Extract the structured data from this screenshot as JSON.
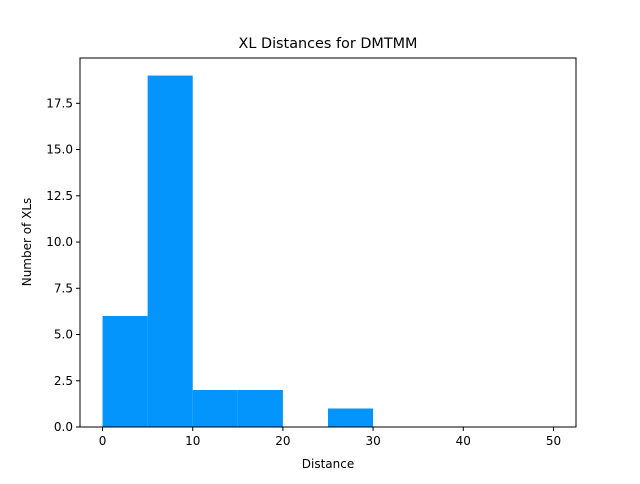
{
  "chart_data": {
    "type": "bar",
    "subtype": "histogram",
    "title": "XL Distances for DMTMM",
    "xlabel": "Distance",
    "ylabel": "Number of XLs",
    "bins": [
      {
        "start": 0,
        "end": 5,
        "count": 6
      },
      {
        "start": 5,
        "end": 10,
        "count": 19
      },
      {
        "start": 10,
        "end": 15,
        "count": 2
      },
      {
        "start": 15,
        "end": 20,
        "count": 2
      },
      {
        "start": 20,
        "end": 25,
        "count": 0
      },
      {
        "start": 25,
        "end": 30,
        "count": 1
      },
      {
        "start": 30,
        "end": 35,
        "count": 0
      },
      {
        "start": 35,
        "end": 40,
        "count": 0
      },
      {
        "start": 40,
        "end": 45,
        "count": 0
      },
      {
        "start": 45,
        "end": 50,
        "count": 0
      }
    ],
    "xlim": [
      -2.5,
      52.5
    ],
    "ylim": [
      0,
      19.95
    ],
    "xticks": [
      0,
      10,
      20,
      30,
      40,
      50
    ],
    "xtick_labels": [
      "0",
      "10",
      "20",
      "30",
      "40",
      "50"
    ],
    "yticks": [
      0,
      2.5,
      5,
      7.5,
      10,
      12.5,
      15,
      17.5
    ],
    "ytick_labels": [
      "0.0",
      "2.5",
      "5.0",
      "7.5",
      "10.0",
      "12.5",
      "15.0",
      "17.5"
    ],
    "grid": false,
    "bar_color": "#0394fc"
  }
}
